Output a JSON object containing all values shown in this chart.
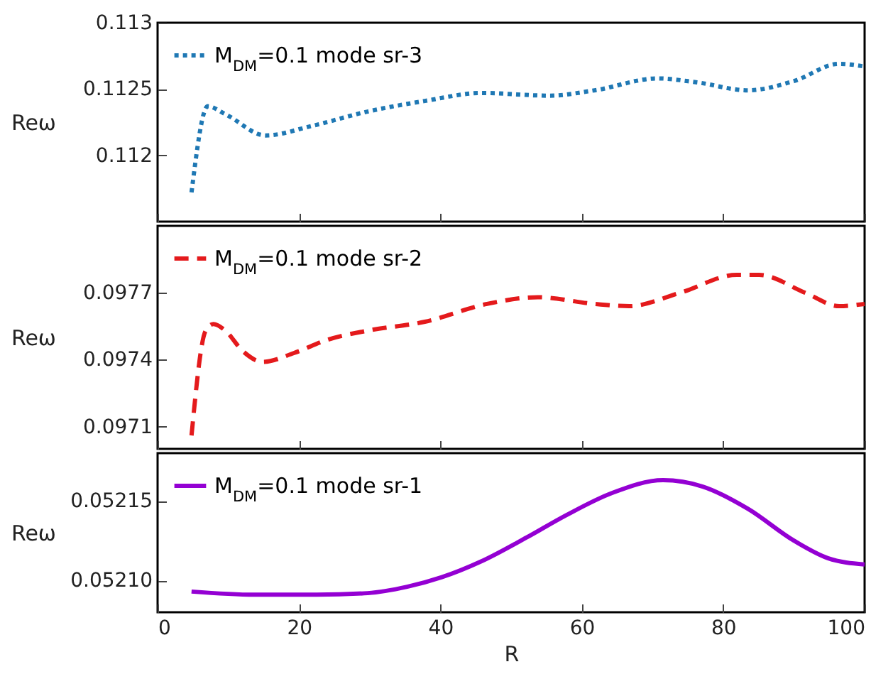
{
  "chart_data": [
    {
      "type": "line",
      "ylabel": "Reω",
      "x": [
        4.8,
        7.1,
        9.6,
        15.3,
        21.7,
        29.7,
        37.8,
        45.8,
        55.4,
        61.8,
        70.7,
        76.3,
        83.5,
        90,
        96.4,
        100
      ],
      "series": [
        {
          "name": "M$_{DM}$=0.1 mode sr-3",
          "color": "#1f78b4",
          "line_style": "dotted",
          "values": [
            0.11172,
            0.11237,
            0.11231,
            0.11215,
            0.11222,
            0.11233,
            0.11241,
            0.11247,
            0.11245,
            0.11249,
            0.11258,
            0.11255,
            0.11249,
            0.11256,
            0.11269,
            0.11267
          ]
        }
      ],
      "xlim": [
        0,
        100
      ],
      "xticks": [
        0,
        20,
        40,
        60,
        80,
        100
      ],
      "ylim": [
        0.1115,
        0.113
      ],
      "yticks": [
        0.112,
        0.1125,
        0.113
      ],
      "tick_labels": "y",
      "legend": "top left",
      "grid": false,
      "marker": "none"
    },
    {
      "type": "line",
      "ylabel": "Reω",
      "x": [
        4.8,
        6.8,
        7.9,
        9.6,
        12,
        14.9,
        19.3,
        24.1,
        29.7,
        37.8,
        46.6,
        53.8,
        61.8,
        66.7,
        73.9,
        81.9,
        85.1,
        91.6,
        96.4,
        100
      ],
      "series": [
        {
          "name": "M$_{DM}$=0.1 mode sr-2",
          "color": "#e41a1c",
          "line_style": "dashed",
          "values": [
            0.09706,
            0.09753,
            0.09756,
            0.09753,
            0.09744,
            0.09739,
            0.09743,
            0.09749,
            0.09753,
            0.09757,
            0.09765,
            0.09768,
            0.09765,
            0.09764,
            0.0977,
            0.09778,
            0.09778,
            0.0977,
            0.09764,
            0.09765
          ]
        }
      ],
      "xlim": [
        0,
        100
      ],
      "xticks": [
        0,
        20,
        40,
        60,
        80,
        100
      ],
      "ylim": [
        0.097,
        0.098
      ],
      "yticks": [
        0.0971,
        0.0974,
        0.0977
      ],
      "tick_labels": "y",
      "legend": "top left",
      "grid": false,
      "marker": "none"
    },
    {
      "type": "line",
      "xlabel": "R",
      "ylabel": "Reω",
      "x": [
        4.8,
        13.7,
        22.5,
        29.7,
        35.3,
        40.2,
        45.8,
        52.2,
        57.8,
        64.3,
        71.5,
        77.1,
        83.5,
        90,
        94.8,
        100
      ],
      "series": [
        {
          "name": "M$_{DM}$=0.1 mode sr-1",
          "color": "#9400d3",
          "line_style": "solid",
          "values": [
            0.052093,
            0.052091,
            0.052091,
            0.052092,
            0.052096,
            0.052102,
            0.052112,
            0.052127,
            0.052141,
            0.052155,
            0.052163,
            0.052159,
            0.052145,
            0.052125,
            0.052114,
            0.05211
          ]
        }
      ],
      "xlim": [
        0,
        100
      ],
      "xticks": [
        0,
        20,
        40,
        60,
        80,
        100
      ],
      "ylim": [
        0.05208,
        0.05218
      ],
      "yticks": [
        {
          "value": 0.0521,
          "label": "0.05210"
        },
        {
          "value": 0.05215,
          "label": "0.05215"
        }
      ],
      "legend": "top left",
      "grid": false,
      "marker": "none"
    }
  ]
}
